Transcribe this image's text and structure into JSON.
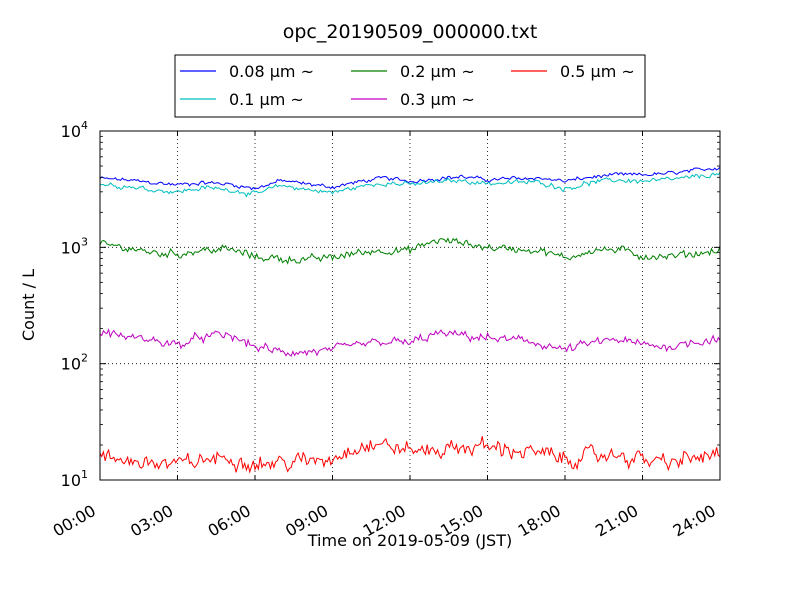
{
  "chart_data": {
    "type": "line",
    "title": "opc_20190509_000000.txt",
    "xlabel": "Time on 2019-05-09 (JST)",
    "ylabel": "Count / L",
    "y_scale": "log",
    "ylim": [
      10,
      10000
    ],
    "xlim": [
      "00:00",
      "24:00"
    ],
    "x_ticks": [
      "00:00",
      "03:00",
      "06:00",
      "09:00",
      "12:00",
      "15:00",
      "18:00",
      "21:00",
      "24:00"
    ],
    "y_ticks": [
      {
        "base": "10",
        "exp": "1",
        "value": 10
      },
      {
        "base": "10",
        "exp": "2",
        "value": 100
      },
      {
        "base": "10",
        "exp": "3",
        "value": 1000
      },
      {
        "base": "10",
        "exp": "4",
        "value": 10000
      }
    ],
    "grid": true,
    "legend": "top-center",
    "legend_entries": [
      "0.08 μm ~",
      "0.1 μm ~",
      "0.2 μm ~",
      "0.3 μm ~",
      "0.5 μm ~"
    ],
    "x": [
      "00:00",
      "01:00",
      "02:00",
      "03:00",
      "04:00",
      "05:00",
      "06:00",
      "07:00",
      "08:00",
      "09:00",
      "10:00",
      "11:00",
      "12:00",
      "13:00",
      "14:00",
      "15:00",
      "16:00",
      "17:00",
      "18:00",
      "19:00",
      "20:00",
      "21:00",
      "22:00",
      "23:00",
      "24:00"
    ],
    "series": [
      {
        "name": "0.08 μm ~",
        "color": "#0000ff",
        "noise": 0.02,
        "values": [
          3900,
          3800,
          3600,
          3450,
          3600,
          3500,
          3200,
          3750,
          3500,
          3300,
          3650,
          3950,
          3700,
          3900,
          4050,
          3800,
          3900,
          3950,
          3700,
          4000,
          4200,
          4200,
          4300,
          4550,
          4900
        ]
      },
      {
        "name": "0.1 μm ~",
        "color": "#00bfbf",
        "noise": 0.025,
        "values": [
          3500,
          3350,
          3150,
          3000,
          3250,
          3150,
          2850,
          3400,
          3150,
          2950,
          3300,
          3600,
          3450,
          3650,
          3750,
          3550,
          3600,
          3650,
          3200,
          3600,
          3800,
          3700,
          3800,
          4000,
          4300
        ]
      },
      {
        "name": "0.2 μm ~",
        "color": "#008000",
        "noise": 0.04,
        "values": [
          1050,
          1000,
          900,
          880,
          950,
          960,
          830,
          800,
          780,
          820,
          900,
          950,
          930,
          1150,
          1100,
          1000,
          970,
          950,
          800,
          950,
          950,
          850,
          830,
          880,
          950
        ]
      },
      {
        "name": "0.3 μm ~",
        "color": "#bf00bf",
        "noise": 0.045,
        "values": [
          190,
          170,
          160,
          145,
          170,
          175,
          140,
          125,
          125,
          130,
          145,
          155,
          150,
          180,
          175,
          165,
          160,
          150,
          130,
          150,
          160,
          145,
          140,
          155,
          165
        ]
      },
      {
        "name": "0.5 μm ~",
        "color": "#ff0000",
        "noise": 0.08,
        "values": [
          15,
          15,
          14,
          13.5,
          15,
          15.5,
          14,
          14,
          14.5,
          15.5,
          20,
          20,
          18,
          18,
          19,
          19.5,
          18,
          17,
          15,
          16,
          16.5,
          15,
          14,
          15.5,
          16.5
        ]
      }
    ]
  }
}
